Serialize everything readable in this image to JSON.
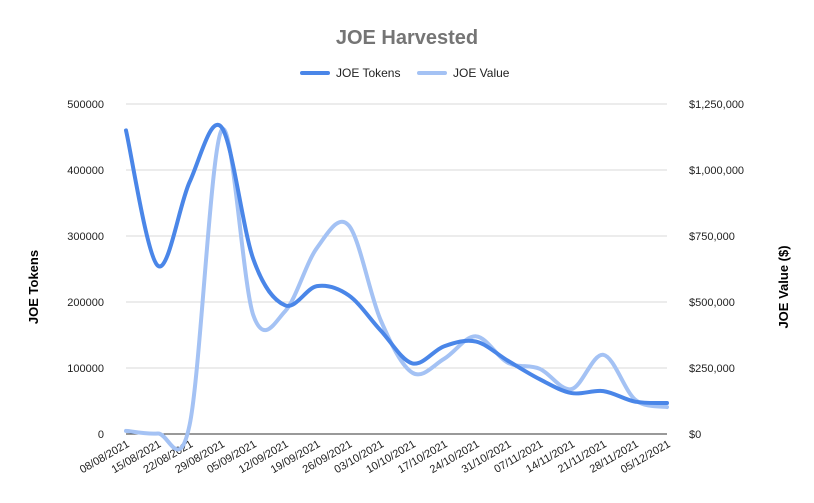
{
  "chart_data": {
    "type": "line",
    "title": "JOE Harvested",
    "ylabel_left": "JOE Tokens",
    "ylabel_right": "JOE Value ($)",
    "x": [
      "08/08/2021",
      "15/08/2021",
      "22/08/2021",
      "29/08/2021",
      "05/09/2021",
      "12/09/2021",
      "19/09/2021",
      "26/09/2021",
      "03/10/2021",
      "10/10/2021",
      "17/10/2021",
      "24/10/2021",
      "31/10/2021",
      "07/11/2021",
      "14/11/2021",
      "21/11/2021",
      "28/11/2021",
      "05/12/2021"
    ],
    "ylim_left": [
      0,
      500000
    ],
    "ylim_right": [
      0,
      1250000
    ],
    "yticks_left": [
      "0",
      "100000",
      "200000",
      "300000",
      "400000",
      "500000"
    ],
    "yticks_right": [
      "$0",
      "$250,000",
      "$500,000",
      "$750,000",
      "$1,000,000",
      "$1,250,000"
    ],
    "series": [
      {
        "name": "JOE Tokens",
        "axis": "left",
        "color": "#4a86e8",
        "values": [
          460000,
          255000,
          382000,
          465000,
          265000,
          195000,
          224000,
          210000,
          157000,
          107000,
          133000,
          140000,
          111000,
          83000,
          62000,
          65000,
          49000,
          47000
        ]
      },
      {
        "name": "JOE Value",
        "axis": "right",
        "color": "#a4c2f4",
        "values": [
          12000,
          2000,
          35000,
          1150000,
          450000,
          465000,
          705000,
          790000,
          432000,
          232000,
          285000,
          370000,
          270000,
          247000,
          170000,
          300000,
          130000,
          102000
        ]
      }
    ],
    "legend": "top-center",
    "grid": true
  }
}
